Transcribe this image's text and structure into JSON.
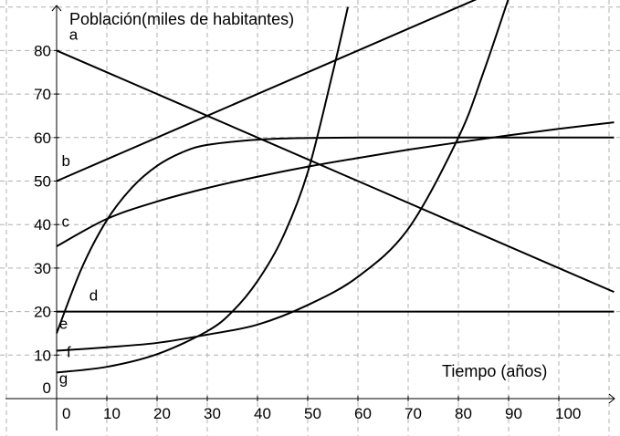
{
  "chart_data": {
    "type": "line",
    "ylabel": "Población(miles de habitantes)",
    "xlabel": "Tiempo (años)",
    "xlim": [
      -10,
      111
    ],
    "ylim": [
      -2,
      87
    ],
    "x_ticks": [
      "0",
      "10",
      "20",
      "30",
      "40",
      "50",
      "60",
      "70",
      "80",
      "90",
      "100"
    ],
    "x_tick_values": [
      0,
      10,
      20,
      30,
      40,
      50,
      60,
      70,
      80,
      90,
      100
    ],
    "y_ticks": [
      "0",
      "10",
      "20",
      "30",
      "40",
      "50",
      "60",
      "70",
      "80"
    ],
    "y_tick_values": [
      0,
      10,
      20,
      30,
      40,
      50,
      60,
      70,
      80
    ],
    "grid": true,
    "series": [
      {
        "name": "a",
        "kind": "linear",
        "x": [
          0,
          20,
          40,
          60,
          80,
          100,
          111
        ],
        "y": [
          80,
          70,
          60,
          50,
          40,
          30,
          24.5
        ]
      },
      {
        "name": "b",
        "kind": "linear",
        "x": [
          0,
          20,
          40,
          60,
          80,
          85
        ],
        "y": [
          50,
          60,
          70,
          80,
          90,
          92.5
        ]
      },
      {
        "name": "c",
        "kind": "sqrt",
        "x": [
          0,
          10,
          20,
          30,
          40,
          50,
          60,
          70,
          80,
          90,
          100,
          111
        ],
        "y": [
          35,
          41.3,
          45.3,
          48.4,
          51.0,
          53.3,
          55.3,
          57.2,
          58.9,
          60.5,
          62.0,
          63.5
        ]
      },
      {
        "name": "d",
        "kind": "constant",
        "x": [
          0,
          111
        ],
        "y": [
          20,
          20
        ]
      },
      {
        "name": "e",
        "kind": "logistic",
        "x": [
          0,
          5,
          10,
          15,
          20,
          25,
          30,
          40,
          50,
          60,
          80,
          111
        ],
        "y": [
          15,
          30,
          41,
          48.5,
          53.5,
          56.6,
          58.3,
          59.5,
          59.9,
          60,
          60,
          60
        ]
      },
      {
        "name": "f",
        "kind": "exponential",
        "x": [
          0,
          10,
          20,
          30,
          40,
          50,
          60,
          70,
          80,
          85,
          90
        ],
        "y": [
          11,
          11.8,
          12.8,
          14.7,
          17.0,
          21.5,
          28.0,
          39.0,
          60.0,
          75.0,
          92.0
        ]
      },
      {
        "name": "g",
        "kind": "exponential",
        "x": [
          0,
          10,
          20,
          30,
          35,
          40,
          45,
          50,
          55,
          58
        ],
        "y": [
          6,
          7.3,
          10.2,
          15.5,
          20.0,
          27.0,
          37.0,
          52.0,
          75.0,
          90.0
        ]
      }
    ],
    "curve_labels": [
      {
        "text": "a",
        "x": 2.5,
        "y": 82.5
      },
      {
        "text": "b",
        "x": 1.0,
        "y": 53.5
      },
      {
        "text": "c",
        "x": 1.0,
        "y": 39.5
      },
      {
        "text": "d",
        "x": 6.5,
        "y": 22.5
      },
      {
        "text": "e",
        "x": 0.5,
        "y": 16.0
      },
      {
        "text": "f",
        "x": 2.0,
        "y": 9.5
      },
      {
        "text": "g",
        "x": 0.5,
        "y": 3.5
      }
    ]
  }
}
